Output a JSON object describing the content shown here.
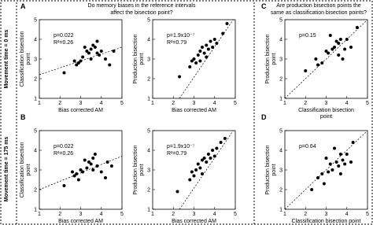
{
  "row_labels": [
    "Movement time = 0 ms",
    "Movement time = 175 ms"
  ],
  "column_titles": [
    [
      "Do memory biases in the reference intervals",
      "affect the bisection point?"
    ],
    [
      "Are production bisection points the",
      "same as classification bisection points?"
    ]
  ],
  "chart_data": [
    {
      "type": "scatter",
      "panel": "A",
      "xlabel": [
        "Bias corrected AM"
      ],
      "ylabel": [
        "Classification bisection",
        "point"
      ],
      "annotations": [
        "p=0.022",
        "R²=0.26"
      ],
      "xlim": [
        1,
        5
      ],
      "ylim": [
        1,
        5
      ],
      "xticks": [
        1,
        2,
        3,
        4,
        5
      ],
      "yticks": [
        1,
        2,
        3,
        4,
        5
      ],
      "color": "#000000",
      "x": [
        2.2,
        2.7,
        2.8,
        2.9,
        3.0,
        3.1,
        3.2,
        3.3,
        3.4,
        3.5,
        3.5,
        3.6,
        3.7,
        3.8,
        3.8,
        3.9,
        4.0,
        4.2,
        4.4,
        4.6
      ],
      "y": [
        2.3,
        2.9,
        2.7,
        2.8,
        2.9,
        3.1,
        3.6,
        3.4,
        3.3,
        3.5,
        3.0,
        3.7,
        3.6,
        3.3,
        3.9,
        3.2,
        3.4,
        3.0,
        2.7,
        3.4
      ],
      "fit": [
        [
          1,
          2.2
        ],
        [
          5,
          3.6
        ]
      ]
    },
    {
      "type": "scatter",
      "xlabel": [
        "Bias corrected AM"
      ],
      "ylabel": [
        "Production bisection",
        "point"
      ],
      "annotations": [
        "p=1.9x10⁻⁷",
        "R²=0.79"
      ],
      "xlim": [
        1,
        5
      ],
      "ylim": [
        1,
        5
      ],
      "xticks": [
        1,
        2,
        3,
        4,
        5
      ],
      "yticks": [
        1,
        2,
        3,
        4,
        5
      ],
      "color": "#000000",
      "x": [
        2.3,
        2.8,
        2.9,
        3.0,
        3.1,
        3.2,
        3.3,
        3.3,
        3.4,
        3.5,
        3.6,
        3.6,
        3.7,
        3.8,
        3.9,
        4.0,
        4.1,
        4.4,
        4.6
      ],
      "y": [
        2.1,
        2.6,
        2.9,
        3.0,
        2.8,
        3.2,
        3.4,
        2.9,
        3.6,
        3.3,
        3.7,
        3.1,
        3.5,
        3.9,
        3.6,
        4.0,
        3.8,
        4.3,
        4.8
      ],
      "fit": [
        [
          2.3,
          1
        ],
        [
          4.9,
          5
        ]
      ]
    },
    {
      "type": "scatter",
      "panel": "C",
      "xlabel": [
        "Classification bisection",
        "point"
      ],
      "ylabel": [
        "Production bisection",
        "point"
      ],
      "annotations": [
        "p=0.15"
      ],
      "xlim": [
        1,
        5
      ],
      "ylim": [
        1,
        5
      ],
      "xticks": [
        1,
        2,
        3,
        4,
        5
      ],
      "yticks": [
        1,
        2,
        3,
        4,
        5
      ],
      "color": "#000000",
      "x": [
        2.0,
        2.5,
        2.6,
        2.8,
        3.0,
        3.1,
        3.2,
        3.3,
        3.4,
        3.5,
        3.6,
        3.6,
        3.7,
        3.8,
        3.9,
        4.0,
        4.2,
        4.5
      ],
      "y": [
        2.4,
        3.0,
        2.7,
        2.8,
        3.4,
        3.3,
        4.2,
        3.5,
        3.6,
        3.9,
        3.8,
        3.2,
        4.0,
        3.0,
        3.5,
        4.0,
        3.6,
        4.6
      ],
      "fit": [
        [
          1,
          1
        ],
        [
          5,
          5
        ]
      ]
    },
    {
      "type": "scatter",
      "panel": "B",
      "xlabel": [
        "Bias corrected AM"
      ],
      "ylabel": [
        "Classification bisection",
        "point"
      ],
      "annotations": [
        "p=0.022",
        "R²=0.26"
      ],
      "xlim": [
        1,
        5
      ],
      "ylim": [
        1,
        5
      ],
      "xticks": [
        1,
        2,
        3,
        4,
        5
      ],
      "yticks": [
        1,
        2,
        3,
        4,
        5
      ],
      "color": "#000000",
      "x": [
        2.2,
        2.6,
        2.7,
        2.8,
        2.9,
        3.0,
        3.1,
        3.2,
        3.3,
        3.4,
        3.5,
        3.6,
        3.6,
        3.7,
        3.8,
        4.0,
        4.2,
        4.3,
        4.5
      ],
      "y": [
        2.2,
        2.9,
        2.7,
        2.8,
        2.5,
        3.0,
        2.9,
        3.5,
        3.1,
        3.4,
        3.3,
        3.6,
        3.0,
        3.8,
        3.2,
        2.9,
        2.6,
        3.4,
        3.2
      ],
      "fit": [
        [
          1,
          2.0
        ],
        [
          5,
          3.7
        ]
      ]
    },
    {
      "type": "scatter",
      "xlabel": [
        "Bias corrected AM"
      ],
      "ylabel": [
        "Production bisection",
        "point"
      ],
      "annotations": [
        "p=1.9x10⁻⁷",
        "R²=0.79"
      ],
      "xlim": [
        1,
        5
      ],
      "ylim": [
        1,
        5
      ],
      "xticks": [
        1,
        2,
        3,
        4,
        5
      ],
      "yticks": [
        1,
        2,
        3,
        4,
        5
      ],
      "color": "#000000",
      "x": [
        2.2,
        2.8,
        2.9,
        3.0,
        3.1,
        3.2,
        3.3,
        3.4,
        3.4,
        3.5,
        3.6,
        3.7,
        3.8,
        3.9,
        4.0,
        4.1,
        4.3,
        4.5
      ],
      "y": [
        1.9,
        2.5,
        2.9,
        2.7,
        3.0,
        3.3,
        3.1,
        3.5,
        2.8,
        3.6,
        3.4,
        3.8,
        3.6,
        4.0,
        3.7,
        4.1,
        4.4,
        4.6
      ],
      "fit": [
        [
          2.3,
          1
        ],
        [
          4.9,
          5
        ]
      ]
    },
    {
      "type": "scatter",
      "panel": "D",
      "xlabel": [
        "Classification bisection point"
      ],
      "ylabel": [
        "Production bisection",
        "point"
      ],
      "annotations": [
        "p=0.64"
      ],
      "xlim": [
        1,
        5
      ],
      "ylim": [
        1,
        5
      ],
      "xticks": [
        1,
        2,
        3,
        4,
        5
      ],
      "yticks": [
        1,
        2,
        3,
        4,
        5
      ],
      "color": "#000000",
      "x": [
        2.3,
        2.6,
        2.8,
        2.9,
        3.0,
        3.1,
        3.2,
        3.3,
        3.4,
        3.5,
        3.6,
        3.7,
        3.7,
        3.8,
        3.9,
        4.0,
        4.2,
        4.3
      ],
      "y": [
        2.0,
        2.6,
        2.8,
        2.3,
        3.6,
        2.9,
        3.3,
        3.0,
        4.1,
        3.4,
        3.2,
        3.8,
        2.8,
        3.5,
        3.3,
        3.8,
        3.4,
        4.4
      ],
      "fit": [
        [
          1,
          1
        ],
        [
          5,
          5
        ]
      ]
    }
  ]
}
